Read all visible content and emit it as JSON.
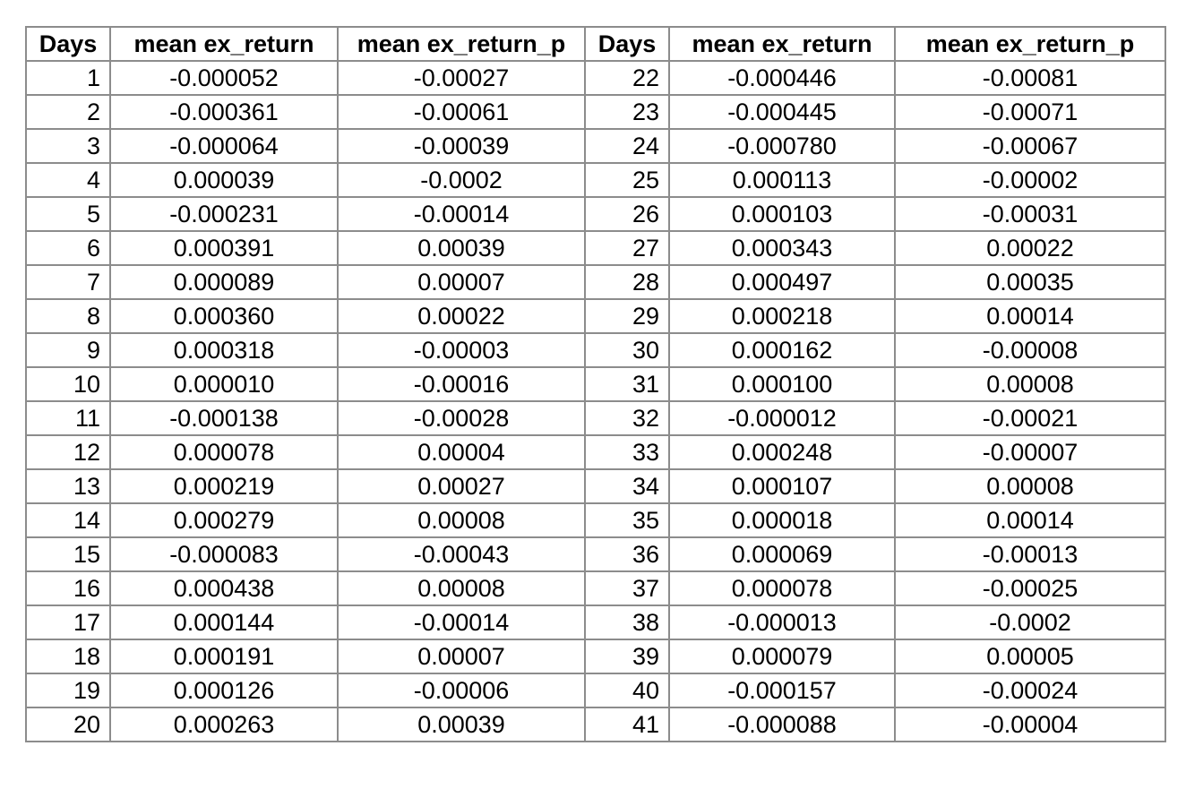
{
  "headers": [
    "Days",
    "mean ex_return",
    "mean ex_return_p",
    "Days",
    "mean ex_return",
    "mean ex_return_p"
  ],
  "rows": [
    [
      "1",
      "-0.000052",
      "-0.00027",
      "22",
      "-0.000446",
      "-0.00081"
    ],
    [
      "2",
      "-0.000361",
      "-0.00061",
      "23",
      "-0.000445",
      "-0.00071"
    ],
    [
      "3",
      "-0.000064",
      "-0.00039",
      "24",
      "-0.000780",
      "-0.00067"
    ],
    [
      "4",
      "0.000039",
      "-0.0002",
      "25",
      "0.000113",
      "-0.00002"
    ],
    [
      "5",
      "-0.000231",
      "-0.00014",
      "26",
      "0.000103",
      "-0.00031"
    ],
    [
      "6",
      "0.000391",
      "0.00039",
      "27",
      "0.000343",
      "0.00022"
    ],
    [
      "7",
      "0.000089",
      "0.00007",
      "28",
      "0.000497",
      "0.00035"
    ],
    [
      "8",
      "0.000360",
      "0.00022",
      "29",
      "0.000218",
      "0.00014"
    ],
    [
      "9",
      "0.000318",
      "-0.00003",
      "30",
      "0.000162",
      "-0.00008"
    ],
    [
      "10",
      "0.000010",
      "-0.00016",
      "31",
      "0.000100",
      "0.00008"
    ],
    [
      "11",
      "-0.000138",
      "-0.00028",
      "32",
      "-0.000012",
      "-0.00021"
    ],
    [
      "12",
      "0.000078",
      "0.00004",
      "33",
      "0.000248",
      "-0.00007"
    ],
    [
      "13",
      "0.000219",
      "0.00027",
      "34",
      "0.000107",
      "0.00008"
    ],
    [
      "14",
      "0.000279",
      "0.00008",
      "35",
      "0.000018",
      "0.00014"
    ],
    [
      "15",
      "-0.000083",
      "-0.00043",
      "36",
      "0.000069",
      "-0.00013"
    ],
    [
      "16",
      "0.000438",
      "0.00008",
      "37",
      "0.000078",
      "-0.00025"
    ],
    [
      "17",
      "0.000144",
      "-0.00014",
      "38",
      "-0.000013",
      "-0.0002"
    ],
    [
      "18",
      "0.000191",
      "0.00007",
      "39",
      "0.000079",
      "0.00005"
    ],
    [
      "19",
      "0.000126",
      "-0.00006",
      "40",
      "-0.000157",
      "-0.00024"
    ],
    [
      "20",
      "0.000263",
      "0.00039",
      "41",
      "-0.000088",
      "-0.00004"
    ]
  ]
}
